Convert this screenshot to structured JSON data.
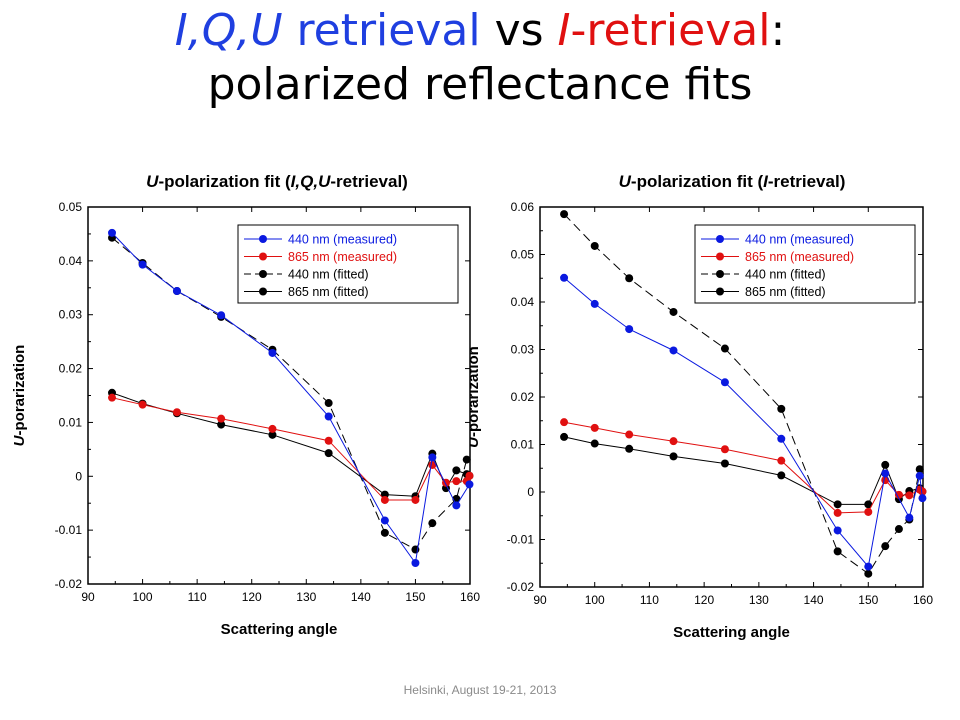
{
  "slide": {
    "title_part1": "I,Q,U",
    "title_part2": " retrieval",
    "title_part3": " vs ",
    "title_part4": "I",
    "title_part5": "-retrieval",
    "title_part6": ":",
    "title_line2": "polarized reflectance fits",
    "footer": "Helsinki, August 19-21, 2013"
  },
  "colors": {
    "blue": "#0a19e0",
    "red": "#e01010",
    "black": "#000000"
  },
  "chart_data": [
    {
      "type": "line",
      "title_italic": "U",
      "title_rest": "-polarization fit (",
      "title_italic2": "I,Q,U",
      "title_end": "-retrieval)",
      "xlabel": "Scattering angle",
      "ylabel_italic": "U",
      "ylabel_rest": "-porarization",
      "xlim": [
        90,
        160
      ],
      "ylim": [
        -0.02,
        0.05
      ],
      "xticks": [
        90,
        100,
        110,
        120,
        130,
        140,
        150,
        160
      ],
      "yticks": [
        -0.02,
        -0.01,
        0,
        0.01,
        0.02,
        0.03,
        0.04,
        0.05
      ],
      "ytick_labels": [
        "-0.02",
        "-0.01",
        "0",
        "0.01",
        "0.02",
        "0.03",
        "0.04",
        "0.05"
      ],
      "legend_position": "top-right",
      "series": [
        {
          "name": "440 nm (measured)",
          "color": "#0a19e0",
          "dash": false,
          "x": [
            94.4,
            100,
            106.3,
            114.4,
            123.8,
            134.1,
            144.4,
            150,
            153.1,
            157.5,
            159.9
          ],
          "y": [
            0.0452,
            0.0393,
            0.0344,
            0.0299,
            0.0229,
            0.0111,
            -0.0082,
            -0.0161,
            0.0035,
            -0.0054,
            -0.0015
          ]
        },
        {
          "name": "865 nm (measured)",
          "color": "#e01010",
          "dash": false,
          "x": [
            94.4,
            100,
            106.3,
            114.4,
            123.8,
            134.1,
            144.4,
            150,
            153.1,
            155.6,
            157.5,
            159.4,
            159.9
          ],
          "y": [
            0.0146,
            0.0133,
            0.0119,
            0.0107,
            0.0088,
            0.0066,
            -0.0044,
            -0.0044,
            0.0021,
            -0.0012,
            -0.0009,
            -0.0009,
            0.0001
          ]
        },
        {
          "name": "440 nm (fitted)",
          "color": "#000000",
          "dash": true,
          "x": [
            94.4,
            100,
            106.3,
            114.4,
            123.8,
            134.1,
            144.4,
            150,
            153.1,
            157.5,
            159.4
          ],
          "y": [
            0.0443,
            0.0396,
            0.0344,
            0.0296,
            0.0235,
            0.0136,
            -0.0105,
            -0.0136,
            -0.0087,
            -0.0042,
            0.0031
          ]
        },
        {
          "name": "865 nm (fitted)",
          "color": "#000000",
          "dash": false,
          "x": [
            94.4,
            100,
            106.3,
            114.4,
            123.8,
            134.1,
            144.4,
            150,
            153.1,
            155.6,
            157.5,
            159.4,
            159.9
          ],
          "y": [
            0.0155,
            0.0135,
            0.0117,
            0.0096,
            0.0077,
            0.0043,
            -0.0034,
            -0.0037,
            0.0042,
            -0.0022,
            0.0011,
            0.0004,
            0.0001
          ]
        }
      ]
    },
    {
      "type": "line",
      "title_italic": "U",
      "title_rest": "-polarization fit (",
      "title_italic2": "I",
      "title_end": "-retrieval)",
      "xlabel": "Scattering angle",
      "ylabel_italic": "U",
      "ylabel_rest": "-porarization",
      "xlim": [
        90,
        160
      ],
      "ylim": [
        -0.02,
        0.06
      ],
      "xticks": [
        90,
        100,
        110,
        120,
        130,
        140,
        150,
        160
      ],
      "yticks": [
        -0.02,
        -0.01,
        0,
        0.01,
        0.02,
        0.03,
        0.04,
        0.05,
        0.06
      ],
      "ytick_labels": [
        "-0.02",
        "-0.01",
        "0",
        "0.01",
        "0.02",
        "0.03",
        "0.04",
        "0.05",
        "0.06"
      ],
      "legend_position": "top-right",
      "series": [
        {
          "name": "440 nm (measured)",
          "color": "#0a19e0",
          "dash": false,
          "x": [
            94.4,
            100,
            106.3,
            114.4,
            123.8,
            134.1,
            144.4,
            150,
            153.1,
            157.5,
            159.4,
            159.9
          ],
          "y": [
            0.0451,
            0.0396,
            0.0343,
            0.0298,
            0.0231,
            0.0112,
            -0.0081,
            -0.0157,
            0.0039,
            -0.0054,
            0.0034,
            -0.0013
          ]
        },
        {
          "name": "865 nm (measured)",
          "color": "#e01010",
          "dash": false,
          "x": [
            94.4,
            100,
            106.3,
            114.4,
            123.8,
            134.1,
            144.4,
            150,
            153.1,
            155.6,
            157.5,
            159.4,
            159.9
          ],
          "y": [
            0.0147,
            0.0135,
            0.0121,
            0.0107,
            0.009,
            0.0066,
            -0.0044,
            -0.0042,
            0.0025,
            -0.0006,
            -0.0007,
            0.0005,
            0.0001
          ]
        },
        {
          "name": "440 nm (fitted)",
          "color": "#000000",
          "dash": true,
          "x": [
            94.4,
            100,
            106.3,
            114.4,
            123.8,
            134.1,
            144.4,
            150,
            153.1,
            155.6,
            157.5,
            159.4
          ],
          "y": [
            0.0585,
            0.0518,
            0.045,
            0.0379,
            0.0302,
            0.0175,
            -0.0125,
            -0.0172,
            -0.0114,
            -0.0078,
            -0.0058,
            0.0048
          ]
        },
        {
          "name": "865 nm (fitted)",
          "color": "#000000",
          "dash": false,
          "x": [
            94.4,
            100,
            106.3,
            114.4,
            123.8,
            134.1,
            144.4,
            150,
            153.1,
            155.6,
            157.5,
            159.4,
            159.9
          ],
          "y": [
            0.0116,
            0.0102,
            0.0091,
            0.0075,
            0.006,
            0.0035,
            -0.0026,
            -0.0026,
            0.0057,
            -0.0015,
            0.0002,
            0.0008,
            0.0001
          ]
        }
      ]
    }
  ]
}
